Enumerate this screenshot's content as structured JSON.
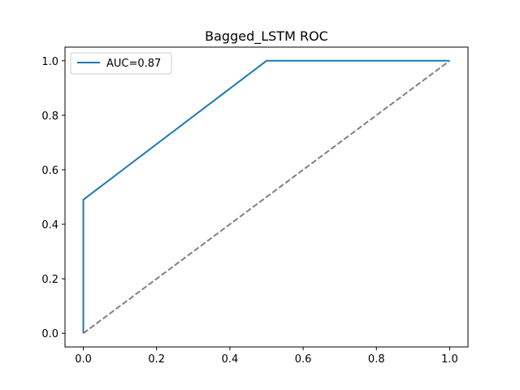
{
  "chart_data": {
    "type": "line",
    "title": "Bagged_LSTM ROC",
    "xlabel": "",
    "ylabel": "",
    "xlim": [
      -0.05,
      1.05
    ],
    "ylim": [
      -0.05,
      1.05
    ],
    "x_ticks": [
      0.0,
      0.2,
      0.4,
      0.6,
      0.8,
      1.0
    ],
    "x_tick_labels": [
      "0.0",
      "0.2",
      "0.4",
      "0.6",
      "0.8",
      "1.0"
    ],
    "y_ticks": [
      0.0,
      0.2,
      0.4,
      0.6,
      0.8,
      1.0
    ],
    "y_tick_labels": [
      "0.0",
      "0.2",
      "0.4",
      "0.6",
      "0.8",
      "1.0"
    ],
    "grid": false,
    "legend_position": "top-left",
    "series": [
      {
        "name": "AUC=0.87",
        "color": "#1f77b4",
        "style": "solid",
        "x": [
          0.0,
          0.0,
          0.5,
          1.0
        ],
        "y": [
          0.0,
          0.49,
          1.0,
          1.0
        ]
      },
      {
        "color": "#808080",
        "style": "dashed",
        "x": [
          0.0,
          1.0
        ],
        "y": [
          0.0,
          1.0
        ]
      }
    ]
  }
}
